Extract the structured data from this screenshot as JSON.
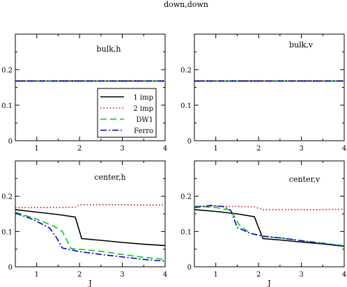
{
  "title": "down,down",
  "legend": [
    "1 imp",
    "2 imp",
    "DW1",
    "Ferro"
  ],
  "colors": {
    "1 imp": "#000000",
    "2 imp": "#e00000",
    "DW1": "#00d000",
    "Ferro": "#0000e0"
  },
  "chart_data": [
    {
      "type": "line",
      "label": "bulk,h",
      "xlabel": "",
      "xlim": [
        0.5,
        4
      ],
      "ylim": [
        0,
        0.3
      ],
      "xticks": [
        "1",
        "2",
        "3",
        "4"
      ],
      "yticks": [
        "0",
        "0.1",
        "0.2"
      ],
      "legend_placement": "bottom-right",
      "series": [
        {
          "name": "1 imp",
          "x": [
            0.5,
            4
          ],
          "y": [
            0.168,
            0.168
          ]
        },
        {
          "name": "2 imp",
          "x": [
            0.5,
            4
          ],
          "y": [
            0.169,
            0.169
          ]
        },
        {
          "name": "DW1",
          "x": [
            0.5,
            4
          ],
          "y": [
            0.168,
            0.168
          ]
        },
        {
          "name": "Ferro",
          "x": [
            0.5,
            4
          ],
          "y": [
            0.168,
            0.168
          ]
        }
      ]
    },
    {
      "type": "line",
      "label": "bulk,v",
      "xlabel": "",
      "xlim": [
        0.5,
        4
      ],
      "ylim": [
        0,
        0.3
      ],
      "xticks": [
        "1",
        "2",
        "3",
        "4"
      ],
      "yticks": [
        "0",
        "0.1",
        "0.2"
      ],
      "series": [
        {
          "name": "1 imp",
          "x": [
            0.5,
            4
          ],
          "y": [
            0.168,
            0.168
          ]
        },
        {
          "name": "2 imp",
          "x": [
            0.5,
            4
          ],
          "y": [
            0.169,
            0.169
          ]
        },
        {
          "name": "DW1",
          "x": [
            0.5,
            4
          ],
          "y": [
            0.168,
            0.168
          ]
        },
        {
          "name": "Ferro",
          "x": [
            0.5,
            4
          ],
          "y": [
            0.168,
            0.168
          ]
        }
      ]
    },
    {
      "type": "line",
      "label": "center,h",
      "xlabel": "J",
      "xlim": [
        0.5,
        4
      ],
      "ylim": [
        0,
        0.3
      ],
      "xticks": [
        "1",
        "2",
        "3",
        "4"
      ],
      "yticks": [
        "0",
        "0.1",
        "0.2"
      ],
      "series": [
        {
          "name": "1 imp",
          "x": [
            0.5,
            1.0,
            1.5,
            1.9,
            2.05,
            2.5,
            3.0,
            3.5,
            4.0
          ],
          "y": [
            0.162,
            0.155,
            0.148,
            0.141,
            0.08,
            0.075,
            0.069,
            0.064,
            0.06
          ]
        },
        {
          "name": "2 imp",
          "x": [
            0.5,
            1.0,
            1.5,
            1.9,
            2.0,
            2.5,
            3.0,
            3.5,
            4.0
          ],
          "y": [
            0.168,
            0.168,
            0.168,
            0.169,
            0.176,
            0.176,
            0.176,
            0.175,
            0.175
          ]
        },
        {
          "name": "DW1",
          "x": [
            0.5,
            1.0,
            1.4,
            1.6,
            1.8,
            2.5,
            3.0,
            3.5,
            4.0
          ],
          "y": [
            0.155,
            0.135,
            0.115,
            0.1,
            0.052,
            0.044,
            0.035,
            0.027,
            0.021
          ]
        },
        {
          "name": "Ferro",
          "x": [
            0.5,
            0.9,
            1.3,
            1.45,
            1.6,
            2.0,
            2.5,
            3.0,
            3.5,
            4.0
          ],
          "y": [
            0.152,
            0.135,
            0.11,
            0.085,
            0.053,
            0.043,
            0.035,
            0.028,
            0.021,
            0.016
          ]
        }
      ]
    },
    {
      "type": "line",
      "label": "center,v",
      "xlabel": "J",
      "xlim": [
        0.5,
        4
      ],
      "ylim": [
        0,
        0.3
      ],
      "xticks": [
        "1",
        "2",
        "3",
        "4"
      ],
      "yticks": [
        "0",
        "0.1",
        "0.2"
      ],
      "series": [
        {
          "name": "1 imp",
          "x": [
            0.5,
            1.0,
            1.5,
            1.9,
            2.1,
            2.5,
            3.0,
            3.5,
            4.0
          ],
          "y": [
            0.162,
            0.157,
            0.15,
            0.142,
            0.08,
            0.076,
            0.07,
            0.065,
            0.058
          ]
        },
        {
          "name": "2 imp",
          "x": [
            0.5,
            1.0,
            1.5,
            1.9,
            2.1,
            2.5,
            3.0,
            3.5,
            4.0
          ],
          "y": [
            0.171,
            0.172,
            0.171,
            0.17,
            0.162,
            0.162,
            0.162,
            0.162,
            0.163
          ]
        },
        {
          "name": "DW1",
          "x": [
            0.5,
            1.0,
            1.35,
            1.55,
            1.8,
            2.1,
            2.5,
            3.0,
            3.5,
            4.0
          ],
          "y": [
            0.172,
            0.168,
            0.16,
            0.118,
            0.095,
            0.086,
            0.082,
            0.074,
            0.067,
            0.06
          ]
        },
        {
          "name": "Ferro",
          "x": [
            0.5,
            0.9,
            1.2,
            1.35,
            1.5,
            1.8,
            2.1,
            2.5,
            3.0,
            3.5,
            4.0
          ],
          "y": [
            0.168,
            0.174,
            0.17,
            0.16,
            0.112,
            0.095,
            0.087,
            0.082,
            0.074,
            0.066,
            0.058
          ]
        }
      ]
    }
  ]
}
